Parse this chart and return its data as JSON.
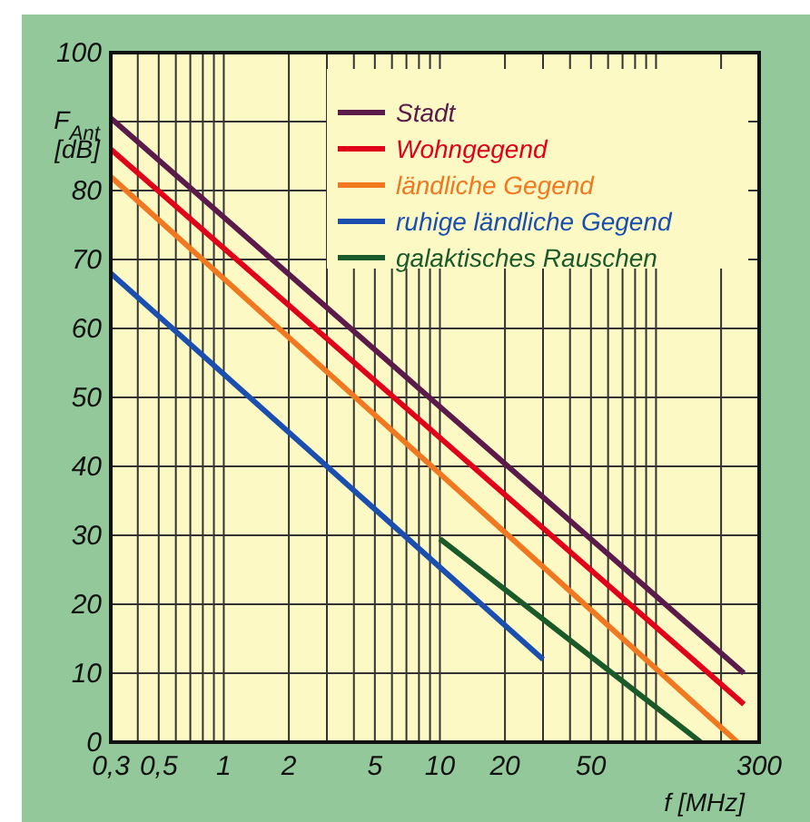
{
  "chart_data": {
    "type": "line",
    "xlabel": "f [MHz]",
    "ylabel": "F$_{Ant}$ [dB]",
    "log": "x",
    "xlim": [
      0.3,
      300
    ],
    "ylim": [
      0,
      100
    ],
    "xticks": [
      {
        "value": 0.3,
        "label": "0,3"
      },
      {
        "value": 0.4,
        "label": null
      },
      {
        "value": 0.5,
        "label": "0,5"
      },
      {
        "value": 0.6,
        "label": null
      },
      {
        "value": 0.7,
        "label": null
      },
      {
        "value": 0.8,
        "label": null
      },
      {
        "value": 0.9,
        "label": null
      },
      1,
      2,
      {
        "value": 3,
        "label": null
      },
      {
        "value": 4,
        "label": null
      },
      5,
      {
        "value": 6,
        "label": null
      },
      {
        "value": 7,
        "label": null
      },
      {
        "value": 8,
        "label": null
      },
      {
        "value": 9,
        "label": null
      },
      10,
      20,
      {
        "value": 30,
        "label": null
      },
      {
        "value": 40,
        "label": null
      },
      50,
      {
        "value": 60,
        "label": null
      },
      {
        "value": 70,
        "label": null
      },
      {
        "value": 80,
        "label": null
      },
      {
        "value": 90,
        "label": null
      },
      {
        "value": 100,
        "label": null
      },
      {
        "value": 200,
        "label": null
      },
      300
    ],
    "yticks": [
      0,
      10,
      20,
      30,
      40,
      50,
      60,
      70,
      80,
      {
        "value": 90,
        "label": null
      },
      100
    ],
    "grid": true,
    "legend": "top right",
    "marker": "none",
    "line_style": "solid",
    "series": [
      {
        "name": "Stadt",
        "color": "#5a1a4a",
        "x": [
          0.3,
          255
        ],
        "values": [
          90.5,
          10
        ]
      },
      {
        "name": "Wohngegend",
        "color": "#e0001a",
        "x": [
          0.3,
          255
        ],
        "values": [
          86,
          5.5
        ]
      },
      {
        "name": "ländliche Gegend",
        "color": "#f07820",
        "x": [
          0.3,
          238
        ],
        "values": [
          82,
          0
        ]
      },
      {
        "name": "ruhige ländliche Gegend",
        "color": "#1a4fb0",
        "x": [
          0.3,
          30
        ],
        "values": [
          68,
          12
        ]
      },
      {
        "name": "galaktisches Rauschen",
        "color": "#1a5a2a",
        "x": [
          10,
          161
        ],
        "values": [
          29.5,
          0
        ]
      }
    ]
  }
}
